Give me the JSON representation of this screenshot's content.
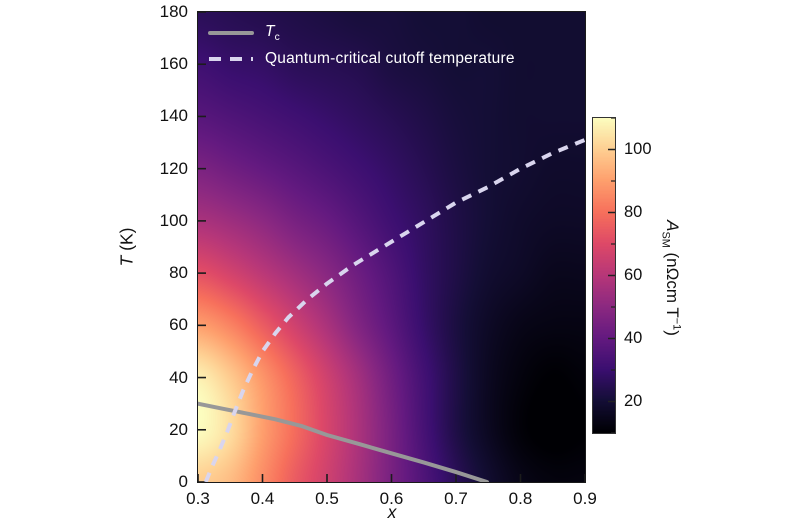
{
  "figure": {
    "bg": "#ffffff"
  },
  "legend": {
    "text_color": "#ffffff",
    "tc": {
      "label_main": "T",
      "label_sub": "c",
      "line_color": "#989898",
      "line_style": "solid"
    },
    "qc": {
      "label": "Quantum-critical cutoff temperature",
      "line_color": "#d9d5ee",
      "line_style": "dashed"
    }
  },
  "axes": {
    "x": {
      "title": "x",
      "min": 0.3,
      "max": 0.9,
      "tick_values": [
        0.3,
        0.4,
        0.5,
        0.6,
        0.7,
        0.8,
        0.9
      ],
      "tick_labels": [
        "0.3",
        "0.4",
        "0.5",
        "0.6",
        "0.7",
        "0.8",
        "0.9"
      ]
    },
    "y": {
      "title_symbol": "T",
      "title_rest": " (K)",
      "min": 0,
      "max": 180,
      "tick_values": [
        0,
        20,
        40,
        60,
        80,
        100,
        120,
        140,
        160,
        180
      ],
      "tick_labels": [
        "0",
        "20",
        "40",
        "60",
        "80",
        "100",
        "120",
        "140",
        "160",
        "180"
      ]
    }
  },
  "colorbar": {
    "title_symbol": "A",
    "title_sub": "SM",
    "title_unit": " (nΩcm T",
    "title_sup": "−1",
    "title_end": ")",
    "range": [
      10,
      110
    ],
    "major_tick_values": [
      20,
      40,
      60,
      80,
      100
    ],
    "major_tick_labels": [
      "20",
      "40",
      "60",
      "80",
      "100"
    ],
    "minor_tick_values": [
      10,
      30,
      50,
      70,
      90,
      110
    ]
  },
  "colormap": {
    "name": "magma",
    "stops": [
      "#000004",
      "#140e36",
      "#3b0f70",
      "#641a80",
      "#8c2981",
      "#b73779",
      "#de4968",
      "#f7705c",
      "#fe9f6d",
      "#fecf92",
      "#fcfdbf"
    ]
  },
  "chart_data": {
    "type": "heatmap",
    "xlabel": "x",
    "ylabel": "T (K)",
    "value_label": "A_SM (nΩcm T−1)",
    "xlim": [
      0.3,
      0.9
    ],
    "ylim": [
      0,
      180
    ],
    "value_range": [
      10,
      110
    ],
    "legend_position": "upper-left",
    "grid": {
      "x": [
        0.3,
        0.35,
        0.4,
        0.45,
        0.5,
        0.55,
        0.6,
        0.65,
        0.7,
        0.75,
        0.8,
        0.85,
        0.9
      ],
      "T": [
        0,
        20,
        40,
        60,
        80,
        100,
        120,
        140,
        160,
        180
      ],
      "values": [
        [
          100,
          96,
          86,
          75,
          66,
          56,
          45,
          35,
          26,
          19,
          14,
          12,
          12
        ],
        [
          110,
          103,
          90,
          79,
          68,
          57,
          45,
          33,
          23,
          16,
          11,
          9,
          10
        ],
        [
          107,
          99,
          88,
          77,
          66,
          55,
          43,
          32,
          23,
          16,
          12,
          10,
          11
        ],
        [
          90,
          84,
          75,
          66,
          57,
          47,
          38,
          29,
          22,
          17,
          14,
          13,
          13
        ],
        [
          72,
          67,
          61,
          55,
          49,
          42,
          35,
          28,
          23,
          19,
          17,
          15,
          15
        ],
        [
          57,
          54,
          50,
          45,
          41,
          36,
          31,
          27,
          23,
          20,
          18,
          17,
          17
        ],
        [
          46,
          43,
          40,
          37,
          34,
          31,
          28,
          25,
          22,
          20,
          19,
          18,
          18
        ],
        [
          37,
          35,
          33,
          31,
          29,
          27,
          25,
          23,
          21,
          20,
          19,
          19,
          19
        ],
        [
          31,
          29,
          28,
          26,
          25,
          24,
          22,
          21,
          20,
          20,
          19,
          19,
          19
        ],
        [
          26,
          25,
          24,
          23,
          22,
          21,
          21,
          20,
          20,
          19,
          19,
          19,
          19
        ]
      ]
    },
    "series": [
      {
        "name": "Tc",
        "style": "solid",
        "color": "#989898",
        "points": [
          [
            0.3,
            30
          ],
          [
            0.34,
            28
          ],
          [
            0.38,
            26
          ],
          [
            0.42,
            24
          ],
          [
            0.46,
            21.5
          ],
          [
            0.5,
            18
          ],
          [
            0.55,
            14.5
          ],
          [
            0.6,
            11
          ],
          [
            0.65,
            7.5
          ],
          [
            0.7,
            3.8
          ],
          [
            0.748,
            0
          ]
        ]
      },
      {
        "name": "Quantum-critical cutoff temperature",
        "style": "dashed",
        "color": "#d9d5ee",
        "points": [
          [
            0.312,
            0
          ],
          [
            0.322,
            6
          ],
          [
            0.333,
            12
          ],
          [
            0.345,
            19
          ],
          [
            0.357,
            27
          ],
          [
            0.37,
            35
          ],
          [
            0.385,
            43
          ],
          [
            0.4,
            50
          ],
          [
            0.42,
            57
          ],
          [
            0.44,
            63
          ],
          [
            0.47,
            70
          ],
          [
            0.5,
            76
          ],
          [
            0.54,
            83
          ],
          [
            0.58,
            89
          ],
          [
            0.62,
            95
          ],
          [
            0.66,
            101
          ],
          [
            0.7,
            107
          ],
          [
            0.75,
            113
          ],
          [
            0.8,
            120
          ],
          [
            0.85,
            126
          ],
          [
            0.9,
            131
          ]
        ]
      }
    ]
  }
}
